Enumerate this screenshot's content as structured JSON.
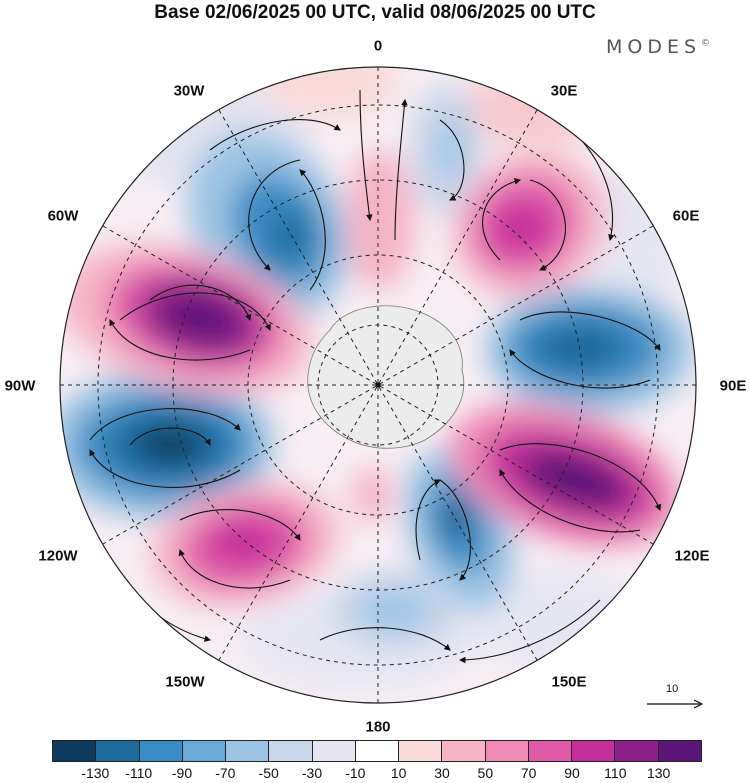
{
  "title": "Base 02/06/2025 00 UTC, valid 08/06/2025 00 UTC",
  "brand": {
    "name": "MODES",
    "mark": "©"
  },
  "longitude_labels": [
    {
      "id": "0",
      "text": "0"
    },
    {
      "id": "30E",
      "text": "30E"
    },
    {
      "id": "60E",
      "text": "60E"
    },
    {
      "id": "90E",
      "text": "90E"
    },
    {
      "id": "120E",
      "text": "120E"
    },
    {
      "id": "150E",
      "text": "150E"
    },
    {
      "id": "180",
      "text": "180"
    },
    {
      "id": "150W",
      "text": "150W"
    },
    {
      "id": "120W",
      "text": "120W"
    },
    {
      "id": "90W",
      "text": "90W"
    },
    {
      "id": "60W",
      "text": "60W"
    },
    {
      "id": "30W",
      "text": "30W"
    }
  ],
  "reference_vector": {
    "label": "10"
  },
  "colorbar": {
    "colors": [
      "#0e3a5e",
      "#1d6a9c",
      "#3a8cc4",
      "#68a9d6",
      "#9cc4e4",
      "#c8d6ea",
      "#e6e6f2",
      "#ffffff",
      "#f9dada",
      "#f6b3c6",
      "#f08ab4",
      "#e05aa8",
      "#c42e9b",
      "#8e1e8a",
      "#5c1677"
    ],
    "tick_labels": [
      "-130",
      "-110",
      "-90",
      "-70",
      "-50",
      "-30",
      "-10",
      "10",
      "30",
      "50",
      "70",
      "90",
      "110",
      "130"
    ]
  }
}
